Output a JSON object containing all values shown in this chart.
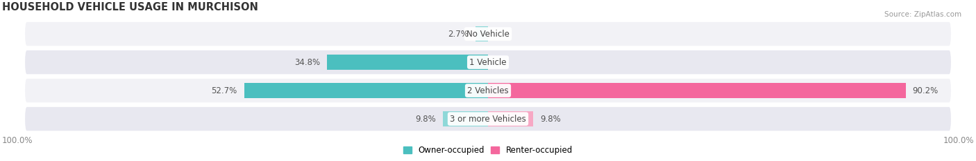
{
  "title": "HOUSEHOLD VEHICLE USAGE IN MURCHISON",
  "source": "Source: ZipAtlas.com",
  "categories": [
    "No Vehicle",
    "1 Vehicle",
    "2 Vehicles",
    "3 or more Vehicles"
  ],
  "owner_values": [
    2.7,
    34.8,
    52.7,
    9.8
  ],
  "renter_values": [
    0.0,
    0.0,
    90.2,
    9.8
  ],
  "owner_color": "#4bbfbf",
  "renter_color": "#f4679d",
  "owner_light_color": "#8ed8d8",
  "renter_light_color": "#f7a8c4",
  "row_bg_odd": "#f2f2f6",
  "row_bg_even": "#e8e8f0",
  "legend_owner": "Owner-occupied",
  "legend_renter": "Renter-occupied",
  "axis_label_left": "100.0%",
  "axis_label_right": "100.0%",
  "title_fontsize": 10.5,
  "label_fontsize": 8.5,
  "bar_height": 0.52
}
